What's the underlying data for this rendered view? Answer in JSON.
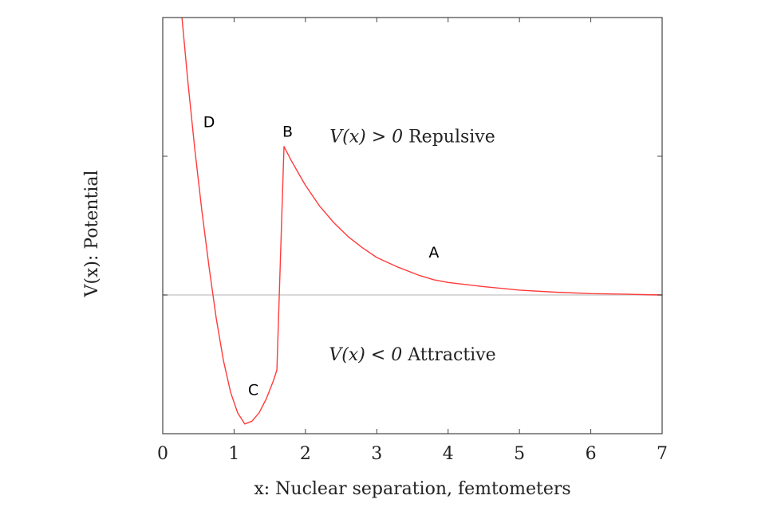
{
  "chart_data": {
    "type": "line",
    "xlabel": "x: Nuclear separation, femtometers",
    "ylabel": "V(x): Potential",
    "xlim": [
      0,
      7
    ],
    "ylim": [
      -1,
      2
    ],
    "xticks": [
      0,
      1,
      2,
      3,
      4,
      5,
      6,
      7
    ],
    "yticks": [
      -1,
      0,
      1,
      2
    ],
    "y_tick_labels_shown": false,
    "zero_line": true,
    "grid": false,
    "series": [
      {
        "color": "#ff3b3b",
        "x": [
          0.27,
          0.35,
          0.45,
          0.55,
          0.65,
          0.75,
          0.85,
          0.95,
          1.05,
          1.15,
          1.25,
          1.35,
          1.45,
          1.55,
          1.6,
          1.7,
          1.8,
          1.9,
          2.0,
          2.2,
          2.4,
          2.6,
          2.8,
          3.0,
          3.3,
          3.6,
          3.8,
          4.0,
          4.5,
          5.0,
          5.5,
          6.0,
          6.5,
          7.0
        ],
        "y": [
          2.0,
          1.55,
          1.05,
          0.6,
          0.2,
          -0.17,
          -0.47,
          -0.7,
          -0.85,
          -0.93,
          -0.91,
          -0.85,
          -0.75,
          -0.62,
          -0.54,
          1.07,
          0.97,
          0.88,
          0.79,
          0.64,
          0.52,
          0.42,
          0.34,
          0.27,
          0.2,
          0.14,
          0.11,
          0.09,
          0.06,
          0.035,
          0.02,
          0.01,
          0.005,
          0.0
        ]
      }
    ],
    "annotations": [
      {
        "text": "A",
        "x": 3.8,
        "y": 0.27
      },
      {
        "text": "B",
        "x": 1.75,
        "y": 1.14
      },
      {
        "text": "C",
        "x": 1.27,
        "y": -0.72
      },
      {
        "text": "D",
        "x": 0.65,
        "y": 1.21
      }
    ],
    "region_labels": [
      {
        "math": "V(x) > 0",
        "text": "Repulsive",
        "x": 3.5,
        "y": 1.1
      },
      {
        "math": "V(x) < 0",
        "text": "Attractive",
        "x": 3.5,
        "y": -0.47
      }
    ],
    "colors": {
      "curve": "#ff3b3b",
      "axes": "#444444",
      "zero_line": "#d9d9d9"
    }
  }
}
